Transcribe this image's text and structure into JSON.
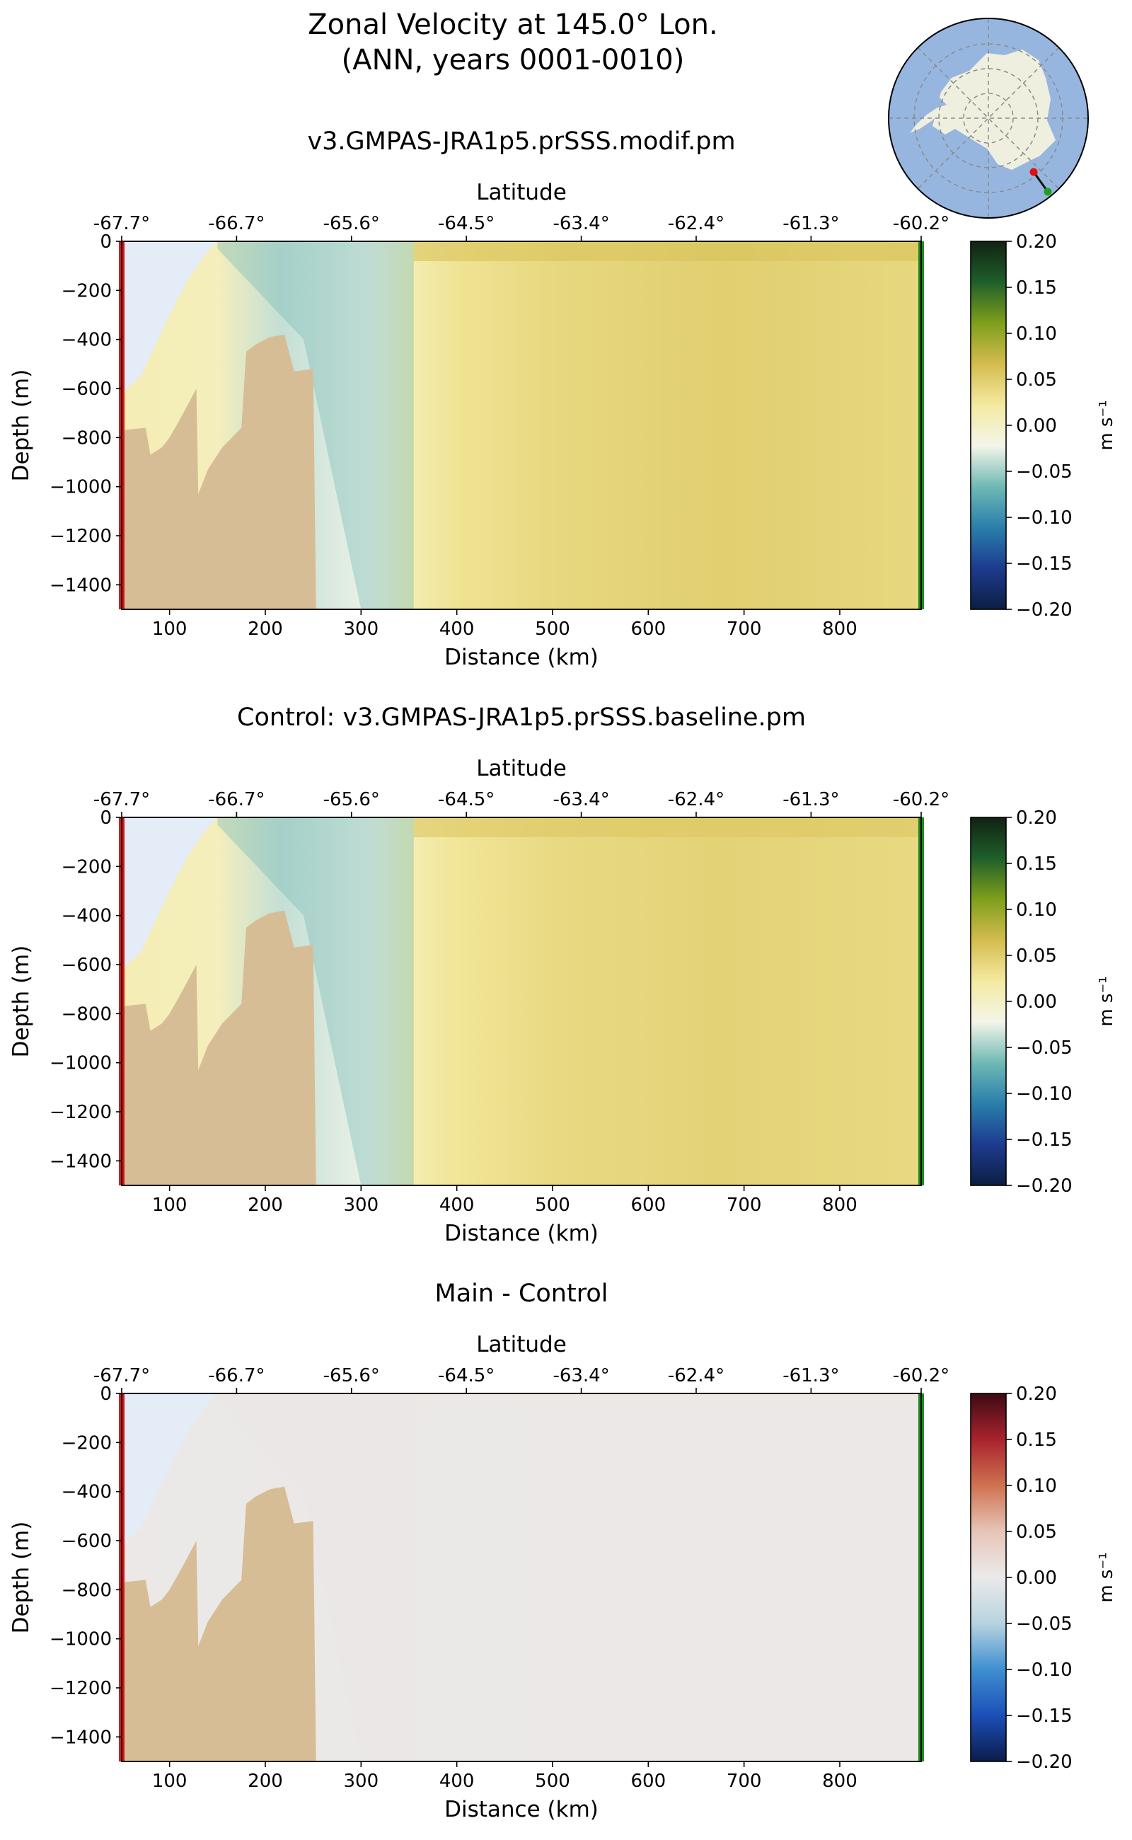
{
  "figure": {
    "title_line1": "Zonal Velocity at 145.0° Lon.",
    "title_line2": "(ANN, years 0001-0010)",
    "inset_map": "antarctica-polar-map-transect-location"
  },
  "chart_data": [
    {
      "type": "heatmap",
      "title": "v3.GMPAS-JRA1p5.prSSS.modif.pm",
      "xlabel": "Distance (km)",
      "ylabel": "Depth (m)",
      "top_axis_label": "Latitude",
      "x_ticks": [
        100,
        200,
        300,
        400,
        500,
        600,
        700,
        800
      ],
      "y_ticks": [
        0,
        -200,
        -400,
        -600,
        -800,
        -1000,
        -1200,
        -1400
      ],
      "xlim": [
        50,
        885
      ],
      "ylim": [
        -1500,
        0
      ],
      "lat_ticks": [
        {
          "label": "-67.7°",
          "x": 50
        },
        {
          "label": "-66.7°",
          "x": 170
        },
        {
          "label": "-65.6°",
          "x": 290
        },
        {
          "label": "-64.5°",
          "x": 410
        },
        {
          "label": "-63.4°",
          "x": 530
        },
        {
          "label": "-62.4°",
          "x": 650
        },
        {
          "label": "-61.3°",
          "x": 770
        },
        {
          "label": "-60.2°",
          "x": 885
        }
      ],
      "colorbar": {
        "label": "m s⁻¹",
        "range": [
          -0.2,
          0.2
        ],
        "ticks": [
          "0.20",
          "0.15",
          "0.10",
          "0.05",
          "0.00",
          "−0.05",
          "−0.10",
          "−0.15",
          "−0.20"
        ],
        "colormap": [
          "#0c1e43",
          "#1d3b8e",
          "#2a7fab",
          "#6fb9b4",
          "#f4f5e9",
          "#f4eaa0",
          "#d4bc4e",
          "#7f9f1c",
          "#1f5f2a",
          "#112213"
        ]
      },
      "field": {
        "offshore_flow": 0.048,
        "shelf_break_jet": -0.07,
        "shelf_flow": 0.01
      }
    },
    {
      "type": "heatmap",
      "title": "Control: v3.GMPAS-JRA1p5.prSSS.baseline.pm",
      "xlabel": "Distance (km)",
      "ylabel": "Depth (m)",
      "top_axis_label": "Latitude",
      "x_ticks": [
        100,
        200,
        300,
        400,
        500,
        600,
        700,
        800
      ],
      "y_ticks": [
        0,
        -200,
        -400,
        -600,
        -800,
        -1000,
        -1200,
        -1400
      ],
      "xlim": [
        50,
        885
      ],
      "ylim": [
        -1500,
        0
      ],
      "lat_ticks": [
        {
          "label": "-67.7°",
          "x": 50
        },
        {
          "label": "-66.7°",
          "x": 170
        },
        {
          "label": "-65.6°",
          "x": 290
        },
        {
          "label": "-64.5°",
          "x": 410
        },
        {
          "label": "-63.4°",
          "x": 530
        },
        {
          "label": "-62.4°",
          "x": 650
        },
        {
          "label": "-61.3°",
          "x": 770
        },
        {
          "label": "-60.2°",
          "x": 885
        }
      ],
      "colorbar": {
        "label": "m s⁻¹",
        "range": [
          -0.2,
          0.2
        ],
        "ticks": [
          "0.20",
          "0.15",
          "0.10",
          "0.05",
          "0.00",
          "−0.05",
          "−0.10",
          "−0.15",
          "−0.20"
        ],
        "colormap": [
          "#0c1e43",
          "#1d3b8e",
          "#2a7fab",
          "#6fb9b4",
          "#f4f5e9",
          "#f4eaa0",
          "#d4bc4e",
          "#7f9f1c",
          "#1f5f2a",
          "#112213"
        ]
      },
      "field": {
        "offshore_flow": 0.045,
        "shelf_break_jet": -0.07,
        "shelf_flow": 0.01
      }
    },
    {
      "type": "heatmap",
      "title": "Main - Control",
      "xlabel": "Distance (km)",
      "ylabel": "Depth (m)",
      "top_axis_label": "Latitude",
      "x_ticks": [
        100,
        200,
        300,
        400,
        500,
        600,
        700,
        800
      ],
      "y_ticks": [
        0,
        -200,
        -400,
        -600,
        -800,
        -1000,
        -1200,
        -1400
      ],
      "xlim": [
        50,
        885
      ],
      "ylim": [
        -1500,
        0
      ],
      "lat_ticks": [
        {
          "label": "-67.7°",
          "x": 50
        },
        {
          "label": "-66.7°",
          "x": 170
        },
        {
          "label": "-65.6°",
          "x": 290
        },
        {
          "label": "-64.5°",
          "x": 410
        },
        {
          "label": "-63.4°",
          "x": 530
        },
        {
          "label": "-62.4°",
          "x": 650
        },
        {
          "label": "-61.3°",
          "x": 770
        },
        {
          "label": "-60.2°",
          "x": 885
        }
      ],
      "colorbar": {
        "label": "m s⁻¹",
        "range": [
          -0.2,
          0.2
        ],
        "ticks": [
          "0.20",
          "0.15",
          "0.10",
          "0.05",
          "0.00",
          "−0.05",
          "−0.10",
          "−0.15",
          "−0.20"
        ],
        "colormap": [
          "#0b1c4a",
          "#1c4fb8",
          "#3f8fd0",
          "#b7d3df",
          "#ebeaea",
          "#e7c5b8",
          "#cf7250",
          "#a8232d",
          "#3d0a14"
        ]
      },
      "field": {
        "offshore_flow": 0.003,
        "shelf_break_jet": 0.005,
        "shelf_flow": 0.003
      }
    }
  ],
  "colors": {
    "bathymetry": "#d7bd95",
    "ice_shelf": "#e3ecf7",
    "start_marker": "#d11a1a",
    "end_marker": "#1e8a1e",
    "ocean_map": "#97b6df",
    "land_map": "#efefdf"
  }
}
